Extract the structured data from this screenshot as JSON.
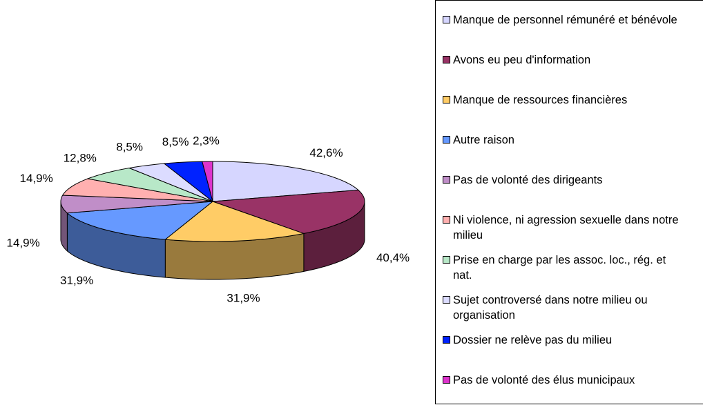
{
  "chart_data": {
    "type": "pie3d",
    "categories": [
      "Manque de personnel rémunéré et bénévole",
      "Avons eu peu d'information",
      "Manque de ressources financières",
      "Autre raison",
      "Pas de volonté des dirigeants",
      "Ni violence, ni agression sexuelle dans notre milieu",
      "Prise en charge par les assoc. loc., rég. et nat.",
      "Sujet controversé dans notre milieu ou organisation",
      "Dossier ne relève pas du milieu",
      "Pas de volonté des élus municipaux"
    ],
    "values": [
      42.6,
      40.4,
      31.9,
      31.9,
      14.9,
      14.9,
      12.8,
      8.5,
      8.5,
      2.3
    ],
    "value_labels": [
      "42,6%",
      "40,4%",
      "31,9%",
      "31,9%",
      "14,9%",
      "14,9%",
      "12,8%",
      "8,5%",
      "8,5%",
      "2,3%"
    ],
    "colors": [
      "#d6d6ff",
      "#993366",
      "#ffcc66",
      "#6699ff",
      "#c08ec8",
      "#ffb0b0",
      "#b8e8c8",
      "#dcdcff",
      "#0022ff",
      "#dd33cc"
    ],
    "legend": "right"
  }
}
